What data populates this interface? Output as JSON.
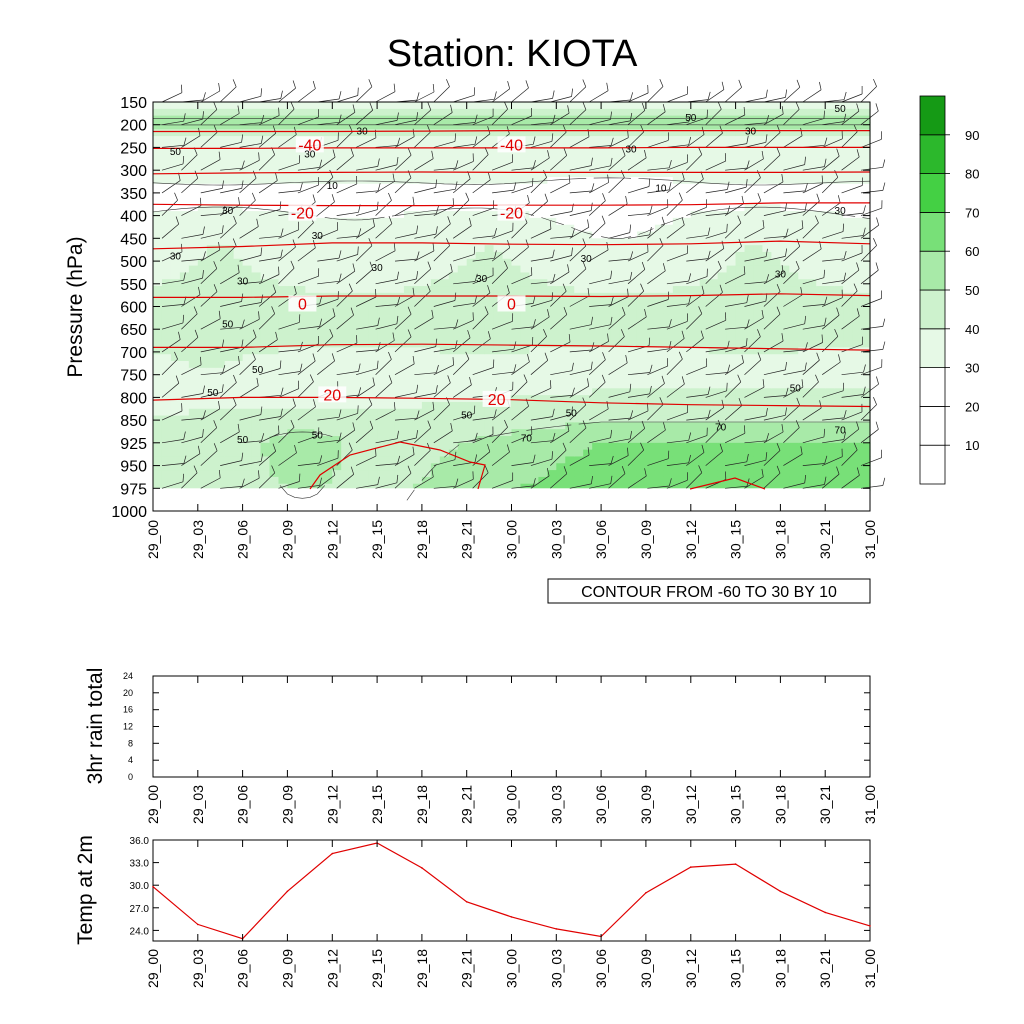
{
  "title": "Station: KIOTA",
  "time_labels": [
    "29_00",
    "29_03",
    "29_06",
    "29_09",
    "29_12",
    "29_15",
    "29_18",
    "29_21",
    "30_00",
    "30_03",
    "30_06",
    "30_09",
    "30_12",
    "30_15",
    "30_18",
    "30_21",
    "31_00"
  ],
  "colors": {
    "temperature_line": "#e00000",
    "rh_levels": [
      "#ffffff",
      "#ffffff",
      "#ffffff",
      "#e6f9e6",
      "#cdf2cd",
      "#a8eaa8",
      "#78e078",
      "#44d044",
      "#2cb82c",
      "#159a15"
    ]
  },
  "chart_data": [
    {
      "type": "heatmap",
      "title": "Station: KIOTA",
      "ylabel": "Pressure (hPa)",
      "xlabel": "",
      "y_ticks": [
        150,
        200,
        250,
        300,
        350,
        400,
        450,
        500,
        550,
        600,
        650,
        700,
        750,
        800,
        850,
        925,
        950,
        975,
        1000
      ],
      "colorbar": {
        "levels": [
          10,
          20,
          30,
          40,
          50,
          60,
          70,
          80,
          90
        ],
        "labels": [
          "10",
          "20",
          "30",
          "40",
          "50",
          "60",
          "70",
          "80",
          "90"
        ]
      },
      "contour_info": "CONTOUR FROM -60 TO 30 BY 10",
      "temperature_contour_labels": [
        {
          "value": "-40",
          "t": 10.5,
          "p": 250
        },
        {
          "value": "-40",
          "t": 24.0,
          "p": 250
        },
        {
          "value": "-20",
          "t": 10.0,
          "p": 400
        },
        {
          "value": "-20",
          "t": 24.0,
          "p": 400
        },
        {
          "value": "0",
          "t": 10.0,
          "p": 600
        },
        {
          "value": "0",
          "t": 24.0,
          "p": 600
        },
        {
          "value": "20",
          "t": 12.0,
          "p": 800
        },
        {
          "value": "20",
          "t": 23.0,
          "p": 810
        }
      ],
      "temperature_isotherms": [
        {
          "label": "-40",
          "t": [
            0,
            6,
            12,
            18,
            24,
            30,
            36,
            42,
            48
          ],
          "p": [
            215,
            215,
            215,
            214,
            213,
            213,
            213,
            213,
            213
          ]
        },
        {
          "label": "-40",
          "t": [
            0,
            6,
            12,
            18,
            24,
            30,
            36,
            42,
            48
          ],
          "p": [
            252,
            252,
            251,
            251,
            251,
            251,
            250,
            250,
            250
          ]
        },
        {
          "label": "-30",
          "t": [
            0,
            6,
            12,
            18,
            24,
            30,
            36,
            42,
            48
          ],
          "p": [
            308,
            306,
            305,
            304,
            305,
            305,
            305,
            305,
            304
          ]
        },
        {
          "label": "-20",
          "t": [
            0,
            6,
            12,
            18,
            24,
            30,
            36,
            42,
            48
          ],
          "p": [
            375,
            377,
            378,
            378,
            377,
            377,
            376,
            372,
            372
          ]
        },
        {
          "label": "-10",
          "t": [
            0,
            6,
            12,
            18,
            24,
            30,
            36,
            42,
            48
          ],
          "p": [
            473,
            468,
            460,
            460,
            463,
            464,
            462,
            456,
            462
          ]
        },
        {
          "label": "0",
          "t": [
            0,
            6,
            12,
            18,
            24,
            30,
            36,
            42,
            48
          ],
          "p": [
            580,
            580,
            577,
            577,
            577,
            578,
            576,
            572,
            576
          ]
        },
        {
          "label": "10",
          "t": [
            0,
            6,
            12,
            18,
            24,
            30,
            36,
            42,
            48
          ],
          "p": [
            690,
            690,
            684,
            683,
            685,
            687,
            690,
            693,
            696
          ]
        },
        {
          "label": "20",
          "t": [
            0,
            6,
            12,
            18,
            24,
            30,
            36,
            42,
            48
          ],
          "p": [
            806,
            800,
            800,
            802,
            805,
            812,
            816,
            818,
            820
          ]
        }
      ],
      "rh_contour_labels": [
        {
          "value": "50",
          "t": 1.5,
          "p": 260
        },
        {
          "value": "30",
          "t": 1.5,
          "p": 490
        },
        {
          "value": "30",
          "t": 5.0,
          "p": 390
        },
        {
          "value": "30",
          "t": 10.5,
          "p": 265
        },
        {
          "value": "30",
          "t": 14.0,
          "p": 215
        },
        {
          "value": "10",
          "t": 12.0,
          "p": 335
        },
        {
          "value": "30",
          "t": 6.0,
          "p": 545
        },
        {
          "value": "30",
          "t": 11.0,
          "p": 445
        },
        {
          "value": "30",
          "t": 15.0,
          "p": 515
        },
        {
          "value": "30",
          "t": 22.0,
          "p": 540
        },
        {
          "value": "30",
          "t": 29.0,
          "p": 495
        },
        {
          "value": "30",
          "t": 32.0,
          "p": 255
        },
        {
          "value": "10",
          "t": 34.0,
          "p": 340
        },
        {
          "value": "30",
          "t": 40.0,
          "p": 215
        },
        {
          "value": "30",
          "t": 46.0,
          "p": 390
        },
        {
          "value": "30",
          "t": 42.0,
          "p": 530
        },
        {
          "value": "50",
          "t": 36.0,
          "p": 185
        },
        {
          "value": "50",
          "t": 46.0,
          "p": 165
        },
        {
          "value": "50",
          "t": 5.0,
          "p": 640
        },
        {
          "value": "50",
          "t": 7.0,
          "p": 740
        },
        {
          "value": "50",
          "t": 4.0,
          "p": 790
        },
        {
          "value": "50",
          "t": 6.0,
          "p": 915
        },
        {
          "value": "50",
          "t": 11.0,
          "p": 900
        },
        {
          "value": "50",
          "t": 21.0,
          "p": 840
        },
        {
          "value": "50",
          "t": 28.0,
          "p": 835
        },
        {
          "value": "50",
          "t": 43.0,
          "p": 780
        },
        {
          "value": "70",
          "t": 25.0,
          "p": 910
        },
        {
          "value": "70",
          "t": 38.0,
          "p": 875
        },
        {
          "value": "70",
          "t": 46.0,
          "p": 885
        }
      ]
    },
    {
      "type": "line",
      "ylabel": "3hr rain total",
      "y_ticks": [
        0,
        4,
        8,
        12,
        16,
        20,
        24
      ],
      "ylim": [
        0,
        24
      ],
      "series": [
        {
          "values": [
            0,
            0,
            0,
            0,
            0,
            0,
            0,
            0,
            0,
            0,
            0,
            0,
            0,
            0,
            0,
            0,
            0
          ]
        }
      ]
    },
    {
      "type": "line",
      "ylabel": "Temp at 2m",
      "y_ticks": [
        "24.0",
        "27.0",
        "30.0",
        "33.0",
        "36.0"
      ],
      "ylim": [
        22.6,
        36.0
      ],
      "series": [
        {
          "values": [
            29.8,
            24.8,
            22.9,
            29.2,
            34.2,
            35.6,
            32.3,
            27.8,
            25.8,
            24.2,
            23.2,
            29.0,
            32.4,
            32.8,
            29.2,
            26.4,
            24.6
          ]
        }
      ]
    }
  ]
}
